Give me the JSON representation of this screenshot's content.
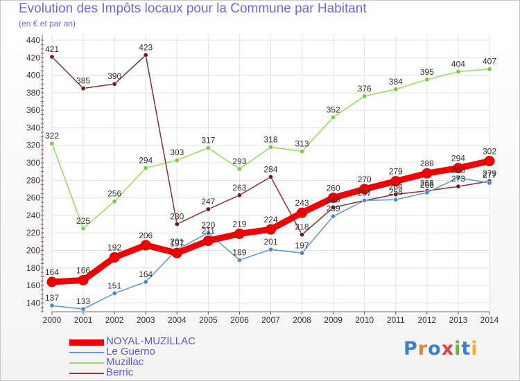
{
  "title": "Evolution des Impôts locaux pour la Commune par Habitant",
  "subtitle": "(en € et par an)",
  "logo": {
    "text": "Proxiti",
    "colors": [
      "#3a7fd0",
      "#f08020",
      "#3a7fd0",
      "#e04040",
      "#70b040",
      "#3a7fd0",
      "#f0b020"
    ]
  },
  "chart_data": {
    "type": "line",
    "title": "Evolution des Impôts locaux pour la Commune par Habitant",
    "subtitle": "(en € et par an)",
    "x": [
      "2000",
      "2001",
      "2002",
      "2003",
      "2004",
      "2005",
      "2006",
      "2007",
      "2008",
      "2009",
      "2010",
      "2011",
      "2012",
      "2013",
      "2014"
    ],
    "ylim": [
      130,
      440
    ],
    "yticks": [
      140,
      160,
      180,
      200,
      220,
      240,
      260,
      280,
      300,
      320,
      340,
      360,
      380,
      400,
      420,
      440
    ],
    "grid": true,
    "legend_position": "bottom-left",
    "series": [
      {
        "name": "Muzillac",
        "color": "#99dd66",
        "marker": "#77cc44",
        "values": [
          322,
          225,
          256,
          294,
          303,
          317,
          293,
          318,
          313,
          352,
          376,
          384,
          395,
          404,
          407
        ],
        "labels": [
          "322",
          "225",
          "256",
          "294",
          "303",
          "317",
          "293",
          "318",
          "313",
          "352",
          "376",
          "384",
          "395",
          "404",
          "407"
        ]
      },
      {
        "name": "Berric",
        "color": "#8b3a3a",
        "marker": "#6a1e1e",
        "values": [
          421,
          385,
          390,
          423,
          230,
          247,
          263,
          284,
          218,
          249,
          257,
          264,
          268,
          273,
          279
        ],
        "labels": [
          "421",
          "385",
          "390",
          "423",
          "230",
          "247",
          "263",
          "284",
          "218",
          "249",
          "257",
          "264",
          "268",
          "273",
          "279"
        ]
      },
      {
        "name": "Le Guerno",
        "color": "#6699cc",
        "marker": "#4a8ad0",
        "values": [
          137,
          133,
          151,
          164,
          201,
          220,
          189,
          201,
          197,
          239,
          257,
          258,
          266,
          283,
          277
        ],
        "labels": [
          "137",
          "133",
          "151",
          "164",
          "201",
          "220",
          "189",
          "201",
          "197",
          "239",
          "257",
          "258",
          "266",
          "283",
          "277"
        ]
      },
      {
        "name": "NOYAL-MUZILLAC",
        "color": "#ee0000",
        "marker": "#ee0000",
        "emphasis": true,
        "values": [
          164,
          166,
          192,
          206,
          197,
          211,
          219,
          224,
          243,
          260,
          270,
          279,
          288,
          294,
          302
        ],
        "labels": [
          "164",
          "166",
          "192",
          "206",
          "197",
          "211",
          "219",
          "224",
          "243",
          "260",
          "270",
          "279",
          "288",
          "294",
          "302"
        ]
      }
    ]
  },
  "legend": [
    {
      "label": "NOYAL-MUZILLAC",
      "color": "#ee0000",
      "width": 9
    },
    {
      "label": "Le Guerno",
      "color": "#6699cc",
      "width": 2
    },
    {
      "label": "Muzillac",
      "color": "#99dd66",
      "width": 2
    },
    {
      "label": "Berric",
      "color": "#8b3a3a",
      "width": 2
    }
  ]
}
